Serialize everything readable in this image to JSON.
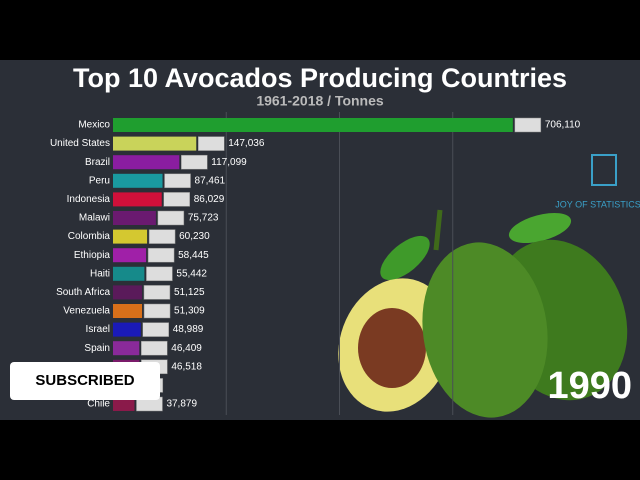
{
  "chart_data": {
    "type": "hbar",
    "title": "Top 10 Avocados Producing Countries",
    "subtitle": "1961-2018 / Tonnes",
    "categories": [
      "Mexico",
      "United States",
      "Brazil",
      "Peru",
      "Indonesia",
      "Malawi",
      "Colombia",
      "Ethiopia",
      "Haiti",
      "South Africa",
      "Venezuela",
      "Israel",
      "Spain",
      null,
      null,
      "Chile"
    ],
    "values": [
      706110,
      147036,
      117099,
      87461,
      86029,
      75723,
      60230,
      58445,
      55442,
      51125,
      51309,
      48989,
      46409,
      46518,
      38500,
      37879
    ],
    "value_labels": [
      "706,110",
      "147,036",
      "117,099",
      "87,461",
      "86,029",
      "75,723",
      "60,230",
      "58,445",
      "55,442",
      "51,125",
      "51,309",
      "48,989",
      "46,409",
      "46,518",
      null,
      "37,879"
    ],
    "colors": [
      "#1f9e2f",
      "#c9d35a",
      "#8a1da0",
      "#1a9aa0",
      "#d0103a",
      "#6a1a70",
      "#d4c830",
      "#a020a8",
      "#168a8a",
      "#5a1a5a",
      "#d8701a",
      "#1a1ab8",
      "#8a2a9a",
      "#7a1a6a",
      "#2a4ab0",
      "#8a1a4a"
    ],
    "xlim": [
      0,
      800000
    ],
    "xticks": [
      200000,
      400000,
      600000
    ],
    "grid": true,
    "annotation": "1990"
  },
  "overlay": {
    "button": "SUBSCRIBED",
    "logo": "JOY OF STATISTICS"
  }
}
